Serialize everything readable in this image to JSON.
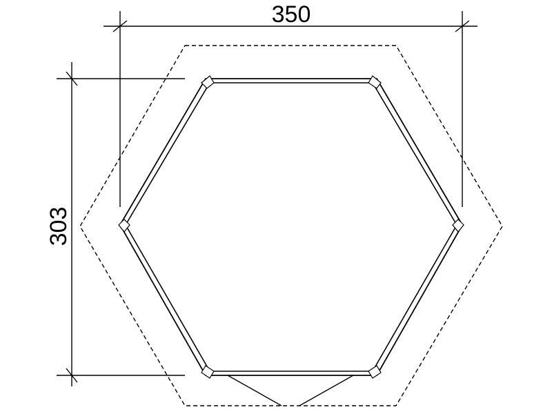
{
  "dimensions": {
    "width_label": "350",
    "depth_label": "303"
  },
  "colors": {
    "line": "#000000",
    "background": "#ffffff"
  }
}
